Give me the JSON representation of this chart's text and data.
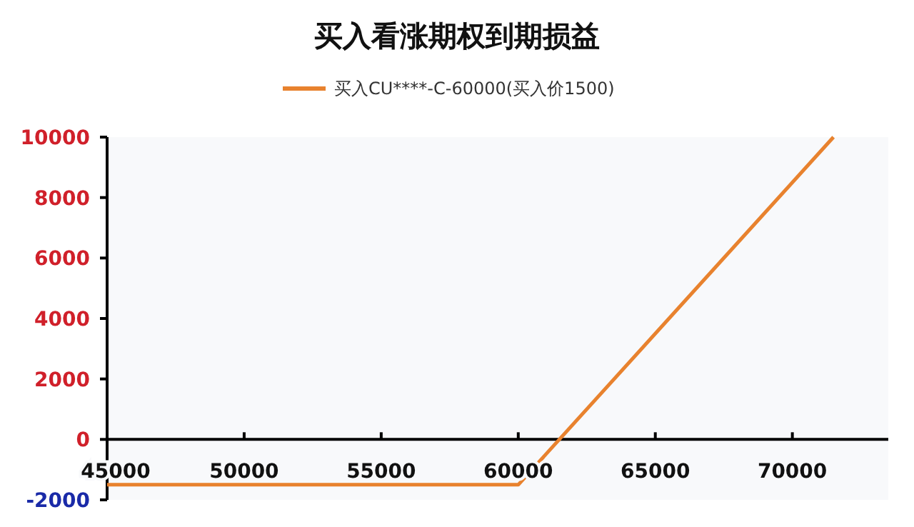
{
  "chart_data": {
    "type": "line",
    "title": "买入看涨期权到期损益",
    "legend": "top",
    "series": [
      {
        "name": "买入CU****-C-60000(买入价1500)",
        "color": "#e8822e",
        "x": [
          45000,
          60000,
          71500
        ],
        "values": [
          -1500,
          -1500,
          10000
        ]
      }
    ],
    "xlim": [
      45000,
      73500
    ],
    "xticks": [
      45000,
      50000,
      55000,
      60000,
      65000,
      70000
    ],
    "ylim": [
      -2000,
      10000
    ],
    "yticks": [
      -2000,
      0,
      2000,
      4000,
      6000,
      8000,
      10000
    ]
  }
}
